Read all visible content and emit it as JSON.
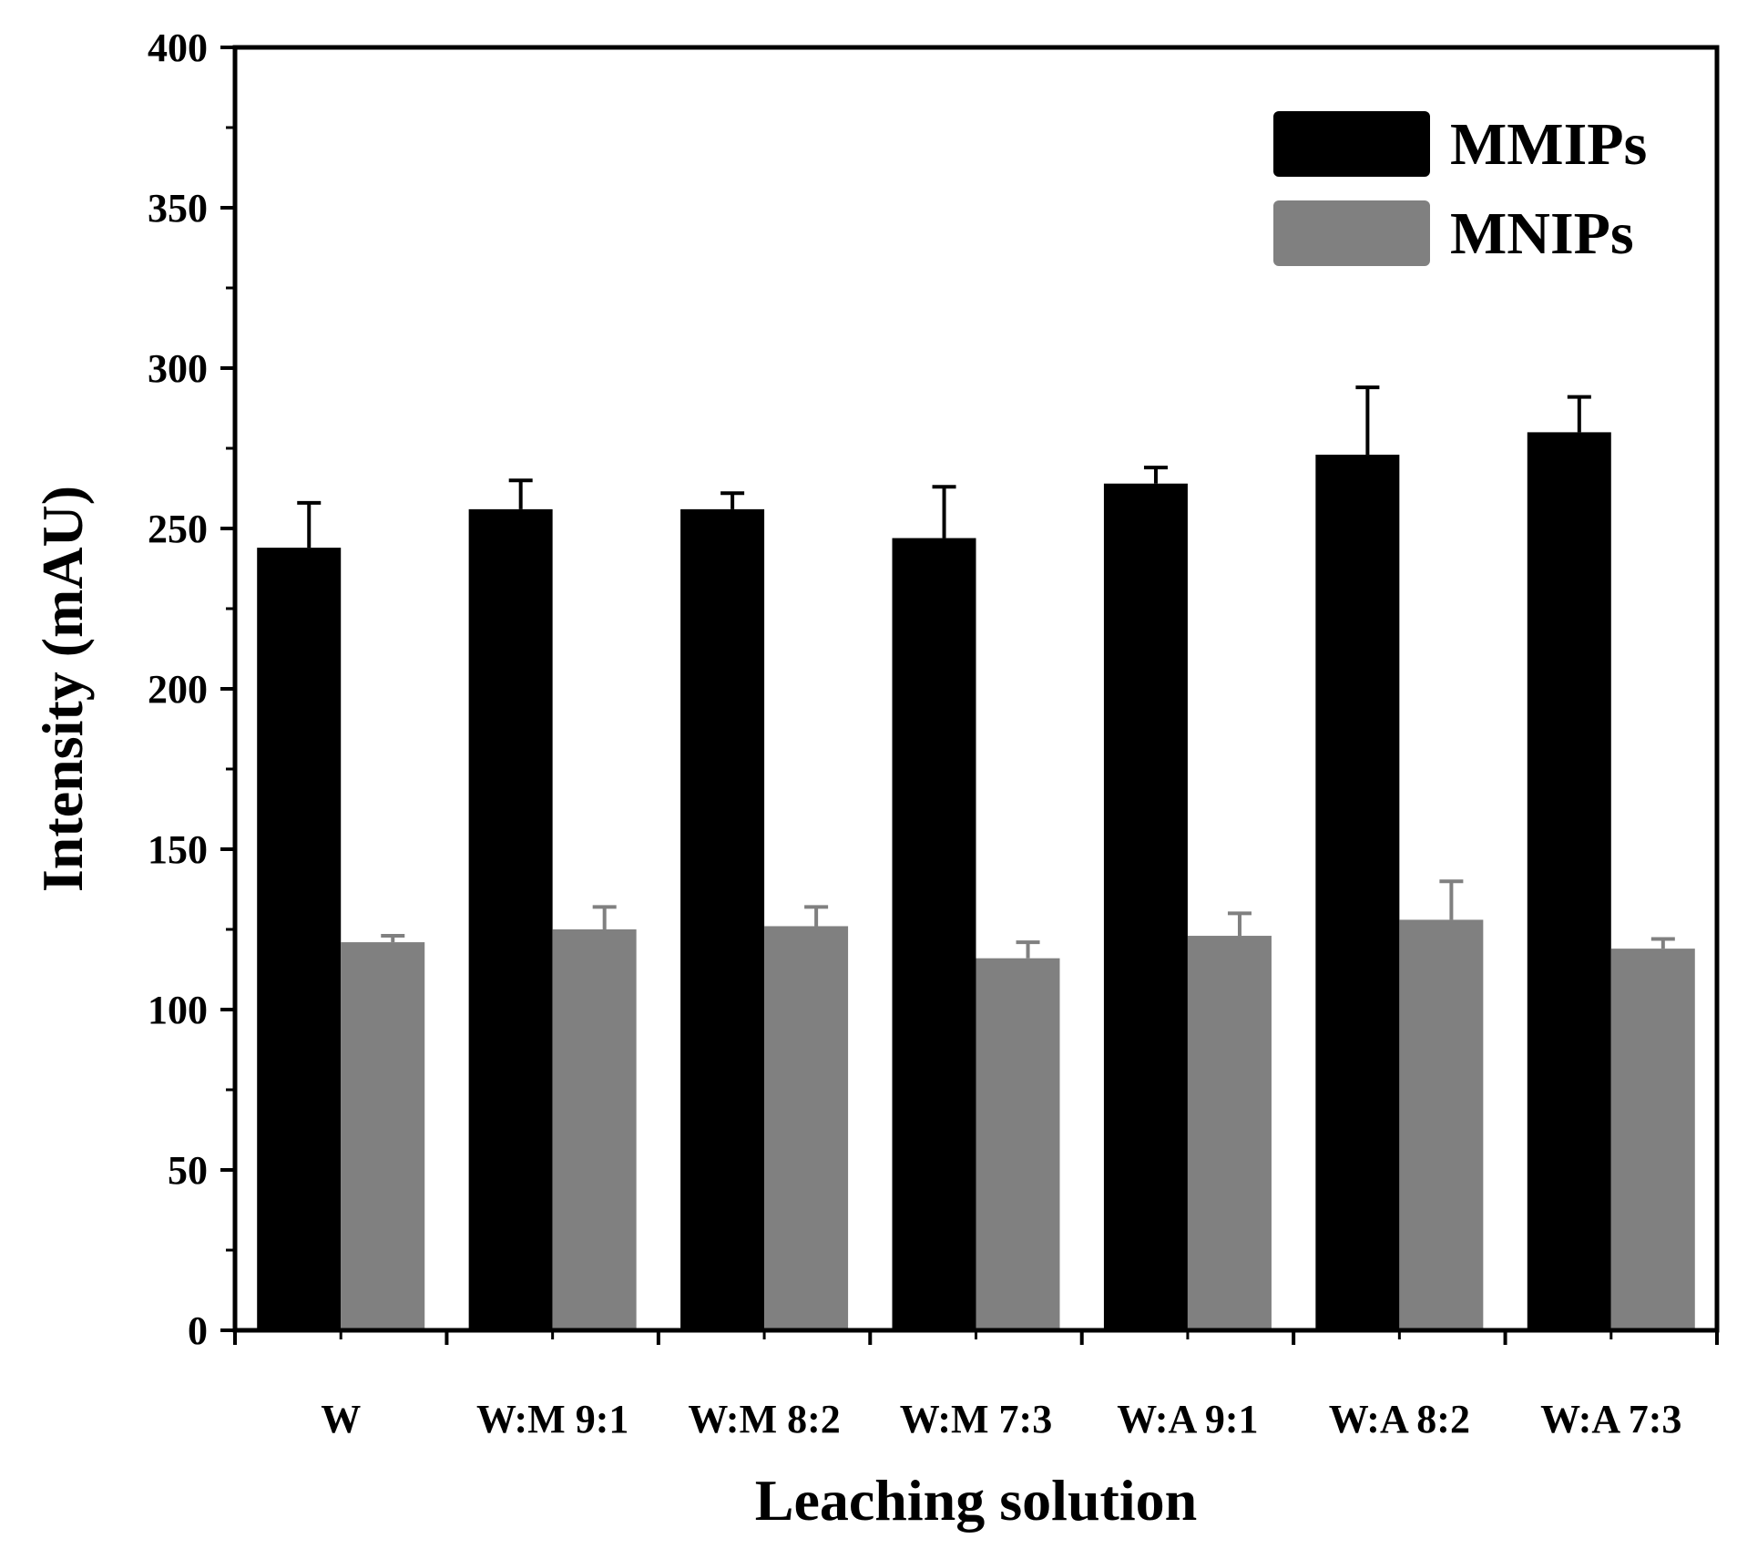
{
  "chart_data": {
    "type": "bar",
    "title": "",
    "xlabel": "Leaching solution",
    "ylabel": "Intensity (mAU)",
    "ylim": [
      0,
      400
    ],
    "yticks": [
      0,
      50,
      100,
      150,
      200,
      250,
      300,
      350,
      400
    ],
    "categories": [
      "W",
      "W:M 9:1",
      "W:M 8:2",
      "W:M 7:3",
      "W:A 9:1",
      "W:A 8:2",
      "W:A 7:3"
    ],
    "series": [
      {
        "name": "MMIPs",
        "color": "#000000",
        "values": [
          244,
          256,
          256,
          247,
          264,
          273,
          280
        ],
        "errors": [
          14,
          9,
          5,
          16,
          5,
          21,
          11
        ]
      },
      {
        "name": "MNIPs",
        "color": "#808080",
        "values": [
          121,
          125,
          126,
          116,
          123,
          128,
          119
        ],
        "errors": [
          2,
          7,
          6,
          5,
          7,
          12,
          3
        ]
      }
    ],
    "legend": {
      "position": "top-right"
    },
    "grid": false
  }
}
